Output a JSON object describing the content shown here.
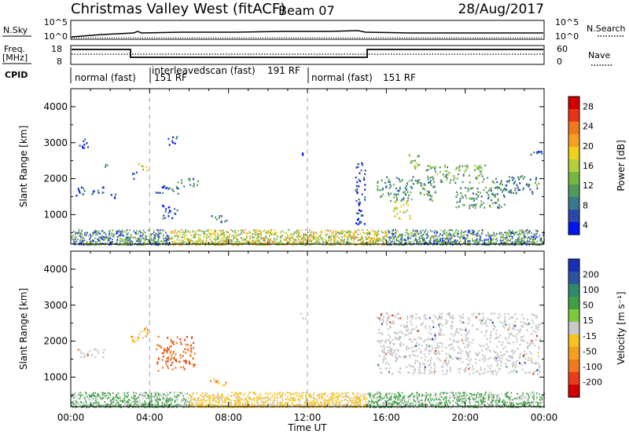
{
  "header": {
    "station": "Christmas Valley West (fitACF)",
    "beam": "Beam 07",
    "date": "28/Aug/2017"
  },
  "top_panels": {
    "nsky_label": "N.Sky",
    "nsearch_label": "N.Search",
    "nave_label": "Nave",
    "freq_label": "Freq.",
    "freq_unit": "[MHz]",
    "cpid_label": "CPID",
    "noise_ticks": [
      "10^5",
      "10^0"
    ],
    "freq_ticks": [
      "18",
      "8"
    ],
    "nave_ticks": [
      "60",
      "0"
    ],
    "cpid_segments": [
      {
        "label": "normal (fast)",
        "rf": "151 RF"
      },
      {
        "label": "interleavedscan (fast)",
        "rf": "191 RF"
      },
      {
        "label": "normal (fast)",
        "rf": "151 RF"
      }
    ]
  },
  "x_axis": {
    "title": "Time UT",
    "ticks": [
      "00:00",
      "04:00",
      "08:00",
      "12:00",
      "16:00",
      "20:00",
      "00:00"
    ]
  },
  "chart_data": [
    {
      "type": "heatmap",
      "name": "power",
      "ylabel": "Slant Range [km]",
      "yticks": [
        "1000",
        "2000",
        "3000",
        "4000"
      ],
      "ylim": [
        180,
        4500
      ],
      "xlim": [
        0,
        24
      ],
      "colorbar_label": "Power [dB]",
      "colorbar_ticks": [
        "4",
        "8",
        "12",
        "16",
        "20",
        "24",
        "28"
      ],
      "colorbar_colors": [
        "#0014f0",
        "#2b47a8",
        "#3b7a8c",
        "#4f9a5c",
        "#76b743",
        "#b4d13a",
        "#f0d21e",
        "#f5a01e",
        "#f07a1e",
        "#e8341a",
        "#d40000"
      ],
      "blobs": [
        {
          "t": [
            0.2,
            1.7
          ],
          "r": [
            1550,
            1800
          ],
          "v": 7
        },
        {
          "t": [
            0.3,
            0.9
          ],
          "r": [
            2850,
            3150
          ],
          "v": 6
        },
        {
          "t": [
            1.7,
            2.0
          ],
          "r": [
            2350,
            2500
          ],
          "v": 10
        },
        {
          "t": [
            2.0,
            2.3
          ],
          "r": [
            1400,
            1650
          ],
          "v": 6
        },
        {
          "t": [
            3.0,
            3.4
          ],
          "r": [
            2000,
            2200
          ],
          "v": 9
        },
        {
          "t": [
            3.4,
            3.9
          ],
          "r": [
            2200,
            2450
          ],
          "v": 18
        },
        {
          "t": [
            4.3,
            5.5
          ],
          "r": [
            1600,
            1850
          ],
          "v": 8
        },
        {
          "t": [
            5.4,
            6.5
          ],
          "r": [
            1800,
            2050
          ],
          "v": 12
        },
        {
          "t": [
            4.6,
            5.4
          ],
          "r": [
            900,
            1300
          ],
          "v": 7
        },
        {
          "t": [
            4.9,
            5.5
          ],
          "r": [
            2950,
            3200
          ],
          "v": 5
        },
        {
          "t": [
            7.0,
            7.9
          ],
          "r": [
            800,
            1000
          ],
          "v": 10
        },
        {
          "t": [
            11.6,
            11.9
          ],
          "r": [
            2600,
            2800
          ],
          "v": 5
        },
        {
          "t": [
            14.4,
            14.9
          ],
          "r": [
            700,
            2500
          ],
          "v": 6
        },
        {
          "t": [
            15.5,
            18.5
          ],
          "r": [
            1400,
            2100
          ],
          "v": 12
        },
        {
          "t": [
            16.3,
            17.2
          ],
          "r": [
            900,
            1400
          ],
          "v": 20
        },
        {
          "t": [
            17.1,
            17.8
          ],
          "r": [
            2300,
            2700
          ],
          "v": 16
        },
        {
          "t": [
            18.0,
            21.0
          ],
          "r": [
            1900,
            2400
          ],
          "v": 14
        },
        {
          "t": [
            19.5,
            22.0
          ],
          "r": [
            1200,
            1800
          ],
          "v": 12
        },
        {
          "t": [
            21.0,
            23.7
          ],
          "r": [
            1600,
            2100
          ],
          "v": 10
        },
        {
          "t": [
            23.3,
            24.0
          ],
          "r": [
            2600,
            2800
          ],
          "v": 6
        }
      ]
    },
    {
      "type": "heatmap",
      "name": "velocity",
      "ylabel": "Slant Range [km]",
      "yticks": [
        "1000",
        "2000",
        "3000",
        "4000"
      ],
      "ylim": [
        180,
        4500
      ],
      "xlim": [
        0,
        24
      ],
      "colorbar_label": "Velocity [m s⁻¹]",
      "colorbar_ticks": [
        "200",
        "100",
        "50",
        "15",
        "-15",
        "-50",
        "-100",
        "-200"
      ],
      "colorbar_colors": [
        "#1a2fb8",
        "#2b55a0",
        "#2f8a6a",
        "#3ea043",
        "#7cc93a",
        "#c8c8c8",
        "#f5c21e",
        "#f5a01e",
        "#f07a1e",
        "#e83c1a",
        "#d40000"
      ],
      "blobs": [
        {
          "t": [
            0.2,
            1.7
          ],
          "r": [
            1550,
            1800
          ],
          "v": 0
        },
        {
          "t": [
            3.0,
            3.9
          ],
          "r": [
            2000,
            2400
          ],
          "v": -40
        },
        {
          "t": [
            4.3,
            6.3
          ],
          "r": [
            1200,
            2150
          ],
          "v": -90
        },
        {
          "t": [
            7.0,
            7.9
          ],
          "r": [
            800,
            1000
          ],
          "v": -60
        },
        {
          "t": [
            15.5,
            23.8
          ],
          "r": [
            1100,
            2800
          ],
          "v": 0
        },
        {
          "t": [
            11.6,
            11.9
          ],
          "r": [
            2600,
            2800
          ],
          "v": 0
        }
      ]
    }
  ],
  "colors": {
    "ground_scatter": "#c8c8c8",
    "frame": "#000000",
    "guide": "#a0a0a0"
  }
}
